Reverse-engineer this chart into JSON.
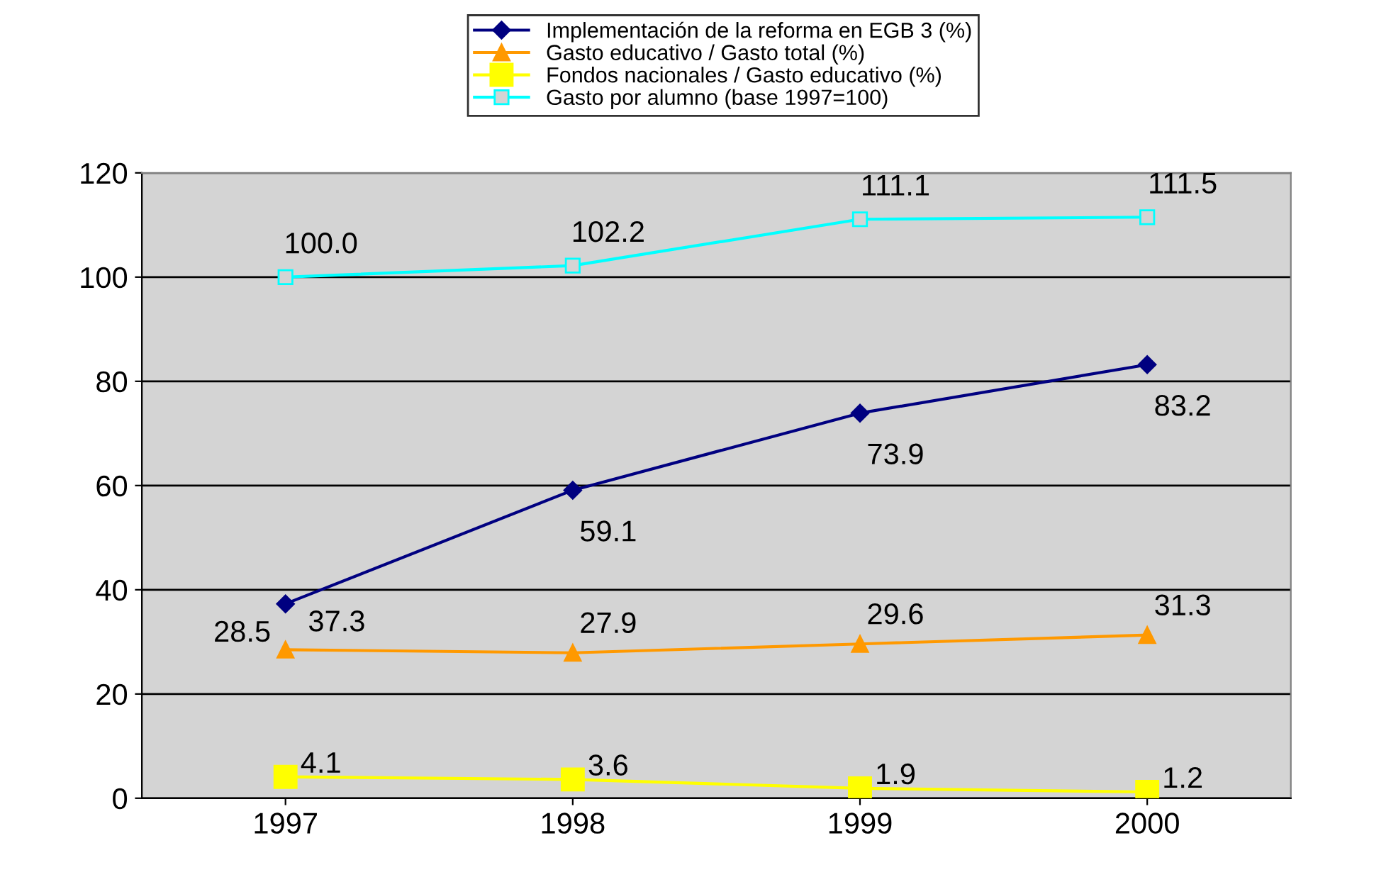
{
  "chart_data": {
    "type": "line",
    "categories": [
      "1997",
      "1998",
      "1999",
      "2000"
    ],
    "series": [
      {
        "name": "Implementación de la reforma en EGB 3 (%)",
        "color": "#000080",
        "marker": "diamond",
        "values": [
          37.3,
          59.1,
          73.9,
          83.2
        ],
        "value_labels": [
          "37.3",
          "59.1",
          "73.9",
          "83.2"
        ]
      },
      {
        "name": "Gasto educativo / Gasto total (%)",
        "color": "#ff9900",
        "marker": "triangle",
        "values": [
          28.5,
          27.9,
          29.6,
          31.3
        ],
        "value_labels": [
          "28.5",
          "27.9",
          "29.6",
          "31.3"
        ]
      },
      {
        "name": "Fondos nacionales / Gasto educativo (%)",
        "color": "#ffff00",
        "marker": "square",
        "values": [
          4.1,
          3.6,
          1.9,
          1.2
        ],
        "value_labels": [
          "4.1",
          "3.6",
          "1.9",
          "1.2"
        ]
      },
      {
        "name": "Gasto por alumno (base 1997=100)",
        "color": "#00ffff",
        "marker": "square",
        "values": [
          100.0,
          102.2,
          111.1,
          111.5
        ],
        "value_labels": [
          "100.0",
          "102.2",
          "111.1",
          "111.5"
        ]
      }
    ],
    "ylim": [
      0,
      120
    ],
    "yticks": [
      0,
      20,
      40,
      60,
      80,
      100,
      120
    ],
    "grid": "y",
    "legend": "top",
    "line_style": "solid"
  }
}
